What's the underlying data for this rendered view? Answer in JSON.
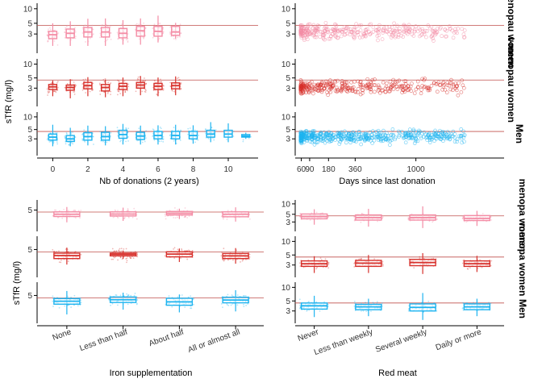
{
  "chart_data": [
    {
      "type": "box",
      "panel": "top-left",
      "xlabel": "Nb of donations (2 years)",
      "ylabel": "sTfR (mg/l)",
      "x_ticks": [
        0,
        2,
        4,
        6,
        8,
        10
      ],
      "xlim": [
        -0.8,
        11.7
      ],
      "y_scale": "log",
      "y_ticks": [
        3,
        5,
        10
      ],
      "ylim": [
        1.2,
        13
      ],
      "reference_line": 4.5,
      "series": [
        {
          "name": "Pre-menopausal women",
          "color": "#f48ca5",
          "x": [
            0,
            1,
            2,
            3,
            4,
            5,
            6,
            7
          ],
          "median": [
            2.9,
            3.1,
            3.3,
            3.3,
            3.1,
            3.5,
            3.4,
            3.3
          ],
          "q1": [
            2.4,
            2.5,
            2.6,
            2.6,
            2.5,
            2.7,
            2.7,
            2.8
          ],
          "q3": [
            3.4,
            3.8,
            4.1,
            4.1,
            3.9,
            4.3,
            4.3,
            4.3
          ],
          "wlo": [
            1.7,
            1.7,
            1.7,
            1.7,
            1.8,
            1.8,
            2.0,
            2.4
          ],
          "whi": [
            5.0,
            5.5,
            6.2,
            6.3,
            5.8,
            6.3,
            7.2,
            5.1
          ]
        },
        {
          "name": "Post-menopausal women",
          "color": "#d7302b",
          "x": [
            0,
            1,
            2,
            3,
            4,
            5,
            6,
            7
          ],
          "median": [
            3.2,
            3.1,
            3.4,
            3.1,
            3.3,
            3.5,
            3.3,
            3.4
          ],
          "q1": [
            2.8,
            2.7,
            2.9,
            2.6,
            2.8,
            3.0,
            2.8,
            2.9
          ],
          "q3": [
            3.6,
            3.5,
            4.0,
            3.6,
            3.8,
            4.0,
            3.8,
            3.9
          ],
          "wlo": [
            2.0,
            1.8,
            2.0,
            1.9,
            2.0,
            2.1,
            2.0,
            2.1
          ],
          "whi": [
            4.4,
            4.7,
            5.2,
            4.6,
            5.1,
            5.5,
            5.1,
            5.4
          ]
        },
        {
          "name": "Men",
          "color": "#1eb4f0",
          "x": [
            0,
            1,
            2,
            3,
            4,
            5,
            6,
            7,
            8,
            9,
            10,
            11
          ],
          "median": [
            3.3,
            3.0,
            3.4,
            3.4,
            3.8,
            3.5,
            3.6,
            3.6,
            3.6,
            3.9,
            3.9,
            3.5
          ],
          "q1": [
            2.8,
            2.6,
            2.8,
            2.8,
            3.1,
            2.9,
            3.0,
            3.0,
            3.0,
            3.3,
            3.3,
            3.3
          ],
          "q3": [
            3.9,
            3.6,
            4.2,
            4.3,
            4.8,
            4.3,
            4.5,
            4.5,
            4.5,
            4.8,
            4.8,
            3.8
          ],
          "wlo": [
            2.0,
            2.0,
            2.1,
            2.1,
            2.2,
            2.2,
            2.2,
            2.2,
            2.3,
            2.5,
            2.5,
            3.0
          ],
          "whi": [
            6.5,
            5.5,
            6.2,
            6.0,
            6.8,
            6.2,
            6.3,
            6.5,
            6.3,
            7.5,
            7.0,
            4.2
          ]
        }
      ]
    },
    {
      "type": "scatter",
      "panel": "top-right",
      "xlabel": "Days since last donation",
      "x_scale": "sqrt",
      "x_ticks": [
        60,
        90,
        180,
        360,
        1000
      ],
      "xlim": [
        56,
        2450
      ],
      "y_scale": "log",
      "y_ticks": [
        3,
        5,
        10
      ],
      "ylim": [
        1.2,
        13
      ],
      "reference_line": 4.5,
      "series": [
        {
          "name": "Pre-menopausal women",
          "color": "#f48ca5",
          "points": [
            [
              95,
              4.8
            ],
            [
              120,
              3.1
            ],
            [
              250,
              2.7
            ],
            [
              600,
              3.4
            ],
            [
              1300,
              2.5
            ]
          ]
        },
        {
          "name": "Post-menopausal women",
          "color": "#d7302b",
          "points": [
            [
              100,
              3.2
            ],
            [
              180,
              3.8
            ],
            [
              400,
              3.0
            ],
            [
              900,
              3.5
            ]
          ]
        },
        {
          "name": "Men",
          "color": "#1eb4f0",
          "points": [
            [
              65,
              3.6
            ],
            [
              90,
              4.2
            ],
            [
              150,
              3.3
            ],
            [
              300,
              3.9
            ],
            [
              1500,
              3.1
            ]
          ]
        }
      ]
    },
    {
      "type": "box",
      "panel": "bottom-left",
      "xlabel": "Iron supplementation",
      "ylabel": "sTfR (mg/l)",
      "categories": [
        "None",
        "Less than half",
        "About half",
        "All or almost all"
      ],
      "y_scale": "log",
      "y_ticks": [
        5
      ],
      "ylim": [
        1.6,
        8.6
      ],
      "reference_line": 4.5,
      "series": [
        {
          "name": "Pre-menopausal women",
          "color": "#f48ca5",
          "median": [
            4.0,
            4.05,
            4.2,
            4.0
          ],
          "q1": [
            3.55,
            3.65,
            3.85,
            3.5
          ],
          "q3": [
            4.55,
            4.55,
            4.65,
            4.55
          ],
          "wlo": [
            2.6,
            2.8,
            3.1,
            2.7
          ],
          "whi": [
            5.9,
            5.7,
            5.4,
            5.8
          ]
        },
        {
          "name": "Post-menopausal women",
          "color": "#d7302b",
          "median": [
            3.9,
            4.1,
            4.15,
            3.85
          ],
          "q1": [
            3.45,
            3.85,
            3.7,
            3.45
          ],
          "q3": [
            4.3,
            4.3,
            4.55,
            4.25
          ],
          "wlo": [
            2.7,
            3.4,
            3.0,
            2.8
          ],
          "whi": [
            5.4,
            4.8,
            5.2,
            5.3
          ]
        },
        {
          "name": "Men",
          "color": "#1eb4f0",
          "median": [
            3.95,
            4.2,
            3.85,
            4.15
          ],
          "q1": [
            3.5,
            3.75,
            3.35,
            3.7
          ],
          "q3": [
            4.4,
            4.7,
            4.45,
            4.65
          ],
          "wlo": [
            2.3,
            2.8,
            2.5,
            2.6
          ],
          "whi": [
            6.0,
            5.6,
            5.2,
            6.2
          ]
        }
      ]
    },
    {
      "type": "box",
      "panel": "bottom-right",
      "xlabel": "Red meat",
      "categories": [
        "Never",
        "Less than weekly",
        "Several weekly",
        "Daily or more"
      ],
      "y_scale": "log",
      "y_ticks": [
        3,
        5,
        10
      ],
      "ylim": [
        1.6,
        13
      ],
      "reference_line": 4.5,
      "series": [
        {
          "name": "Pre-menopausal women",
          "color": "#f48ca5",
          "median": [
            4.3,
            4.0,
            4.0,
            3.8
          ],
          "q1": [
            3.7,
            3.4,
            3.4,
            3.3
          ],
          "q3": [
            5.1,
            4.8,
            4.8,
            4.6
          ],
          "wlo": [
            2.5,
            2.2,
            2.0,
            2.3
          ],
          "whi": [
            7.0,
            7.2,
            8.5,
            6.3
          ]
        },
        {
          "name": "Post-menopausal women",
          "color": "#d7302b",
          "median": [
            3.2,
            3.3,
            3.4,
            3.2
          ],
          "q1": [
            2.8,
            2.8,
            2.9,
            2.8
          ],
          "q3": [
            3.7,
            3.8,
            4.0,
            3.7
          ],
          "wlo": [
            2.0,
            2.0,
            1.9,
            2.1
          ],
          "whi": [
            4.7,
            5.0,
            5.5,
            4.8
          ]
        },
        {
          "name": "Men",
          "color": "#1eb4f0",
          "median": [
            3.9,
            3.7,
            3.6,
            3.7
          ],
          "q1": [
            3.3,
            3.2,
            3.0,
            3.2
          ],
          "q3": [
            4.5,
            4.2,
            4.3,
            4.3
          ],
          "wlo": [
            2.2,
            2.3,
            1.9,
            2.3
          ],
          "whi": [
            6.5,
            5.6,
            7.5,
            5.6
          ]
        }
      ]
    }
  ],
  "strips": {
    "top": [
      "-menopau women",
      "t-menopau women",
      "Men"
    ],
    "bottom": [
      "menopa women",
      "menopa women",
      "Men"
    ]
  },
  "labels": {
    "top_left_y": "sTfR (mg/l)",
    "top_left_x": "Nb of donations (2 years)",
    "top_right_x": "Days since last donation",
    "bottom_left_y": "sTfR (mg/l)",
    "bottom_left_x": "Iron supplementation",
    "bottom_right_x": "Red meat"
  }
}
